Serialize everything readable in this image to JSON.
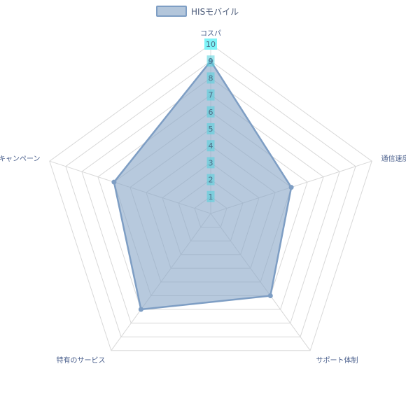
{
  "chart_data": {
    "type": "radar",
    "axes": [
      "コスパ",
      "通信速度",
      "サポート体制",
      "特有のサービス",
      "キャンペーン"
    ],
    "series": [
      {
        "name": "HISモバイル",
        "values": [
          9,
          5,
          6,
          7,
          6
        ]
      }
    ],
    "r_min": 0,
    "r_max": 10,
    "ticks": [
      "1",
      "2",
      "3",
      "4",
      "5",
      "6",
      "7",
      "8",
      "9",
      "10"
    ],
    "legend_position": "top-center",
    "grid": true,
    "colors": {
      "fill": "#8aa8c8",
      "stroke": "#7e9ec4",
      "grid": "#d8d8d8",
      "tick_background": "#4fd1dc",
      "tick_highlight": "#7ef4f8"
    }
  }
}
